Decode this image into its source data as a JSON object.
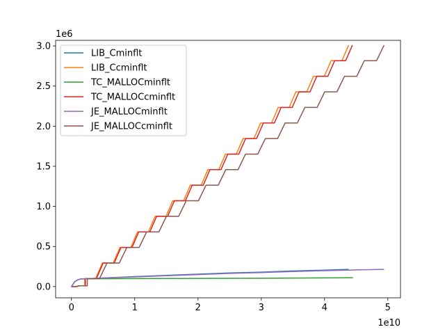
{
  "chart_data": {
    "type": "line",
    "title": "",
    "xlabel": "",
    "ylabel": "",
    "x_offset_label": "1e10",
    "y_offset_label": "1e6",
    "xlim": [
      -0.25,
      5.2
    ],
    "ylim": [
      -0.14,
      3.07
    ],
    "x_ticks": [
      0,
      1,
      2,
      3,
      4,
      5
    ],
    "x_tick_labels": [
      "0",
      "1",
      "2",
      "3",
      "4",
      "5"
    ],
    "y_ticks": [
      0.0,
      0.5,
      1.0,
      1.5,
      2.0,
      2.5,
      3.0
    ],
    "y_tick_labels": [
      "0.0",
      "0.5",
      "1.0",
      "1.5",
      "2.0",
      "2.5",
      "3.0"
    ],
    "grid": false,
    "legend_position": "upper-left",
    "series": [
      {
        "name": "LIB_Cminflt",
        "color": "#1f77b4",
        "x": [
          0.0,
          0.05,
          0.1,
          0.15,
          0.3,
          0.6,
          1.0,
          1.5,
          2.0,
          2.5,
          3.0,
          3.5,
          4.0,
          4.38
        ],
        "y": [
          0.0,
          0.06,
          0.085,
          0.095,
          0.1,
          0.11,
          0.125,
          0.14,
          0.155,
          0.17,
          0.18,
          0.195,
          0.205,
          0.215
        ]
      },
      {
        "name": "LIB_Ccminflt",
        "color": "#ff7f0e",
        "steps": {
          "x_start": 2.1,
          "x_end": 43.8,
          "x_scale": 0.1,
          "y_first": 0.1,
          "y_step": 0.194,
          "n": 15
        }
      },
      {
        "name": "TC_MALLOCminflt",
        "color": "#2ca02c",
        "x": [
          0.0,
          0.05,
          0.1,
          0.15,
          0.3,
          1.0,
          2.0,
          3.0,
          3.5,
          4.0,
          4.45
        ],
        "y": [
          0.0,
          0.06,
          0.085,
          0.095,
          0.098,
          0.1,
          0.102,
          0.104,
          0.106,
          0.108,
          0.11
        ]
      },
      {
        "name": "TC_MALLOCcminflt",
        "color": "#d62728",
        "steps": {
          "x_start": 2.2,
          "x_end": 44.4,
          "x_scale": 0.1,
          "y_first": 0.1,
          "y_step": 0.194,
          "n": 15
        }
      },
      {
        "name": "JE_MALLOCminflt",
        "color": "#9467bd",
        "x": [
          0.0,
          0.05,
          0.1,
          0.15,
          0.3,
          0.6,
          1.0,
          1.5,
          2.0,
          2.5,
          3.0,
          3.5,
          4.0,
          4.5,
          4.94
        ],
        "y": [
          0.0,
          0.06,
          0.085,
          0.095,
          0.1,
          0.11,
          0.12,
          0.135,
          0.15,
          0.165,
          0.175,
          0.188,
          0.198,
          0.208,
          0.215
        ]
      },
      {
        "name": "JE_MALLOCcminflt",
        "color": "#8c564b",
        "steps": {
          "x_start": 2.5,
          "x_end": 49.4,
          "x_scale": 0.1,
          "y_first": 0.1,
          "y_step": 0.194,
          "n": 15
        }
      }
    ]
  }
}
